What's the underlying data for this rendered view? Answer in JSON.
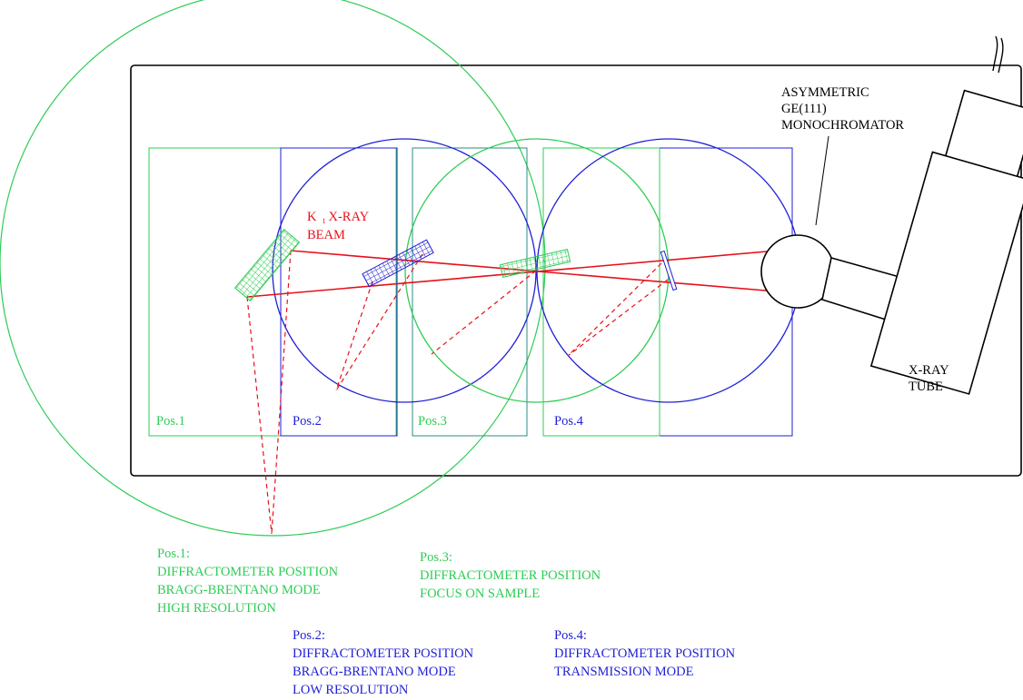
{
  "colors": {
    "green": "#2ecc55",
    "blue": "#1f1fd6",
    "red": "#e8101a",
    "black": "#000000"
  },
  "labels": {
    "monochromator": [
      "ASYMMETRIC",
      "GE(111)",
      "MONOCHROMATOR"
    ],
    "tube": [
      "X-RAY",
      "TUBE"
    ],
    "beam": {
      "k": "K",
      "subscript": "1",
      "line1_rest": "X-RAY",
      "line2": "BEAM"
    },
    "positions": {
      "pos1": "Pos.1",
      "pos2": "Pos.2",
      "pos3": "Pos.3",
      "pos4": "Pos.4"
    }
  },
  "legend": {
    "pos1": [
      "Pos.1:",
      "DIFFRACTOMETER POSITION",
      "BRAGG-BRENTANO MODE",
      "HIGH RESOLUTION"
    ],
    "pos2": [
      "Pos.2:",
      "DIFFRACTOMETER POSITION",
      "BRAGG-BRENTANO MODE",
      "LOW RESOLUTION"
    ],
    "pos3": [
      "Pos.3:",
      "DIFFRACTOMETER POSITION",
      "FOCUS ON SAMPLE"
    ],
    "pos4": [
      "Pos.4:",
      "DIFFRACTOMETER POSITION",
      "TRANSMISSION MODE"
    ]
  }
}
